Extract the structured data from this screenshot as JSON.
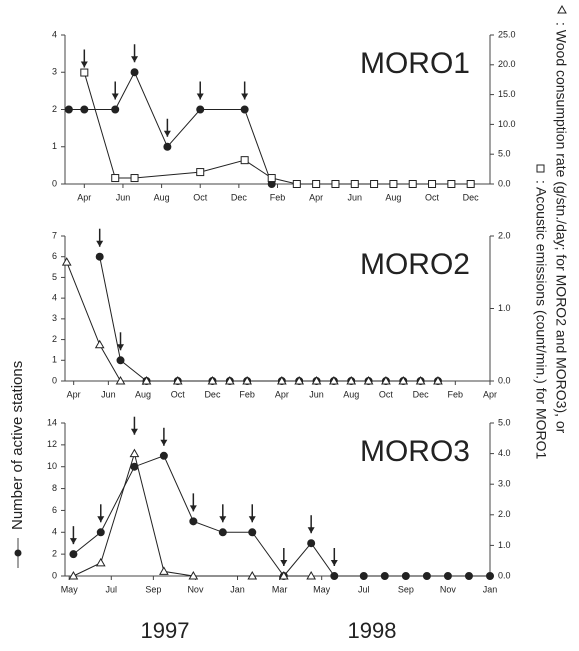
{
  "chart_data": [
    {
      "type": "line",
      "title": "MORO1",
      "xlim": [
        2,
        24
      ],
      "xticks": [
        {
          "value": 3,
          "label": "Apr"
        },
        {
          "value": 5,
          "label": "Jun"
        },
        {
          "value": 7,
          "label": "Aug"
        },
        {
          "value": 9,
          "label": "Oct"
        },
        {
          "value": 11,
          "label": "Dec"
        },
        {
          "value": 13,
          "label": "Feb"
        },
        {
          "value": 15,
          "label": "Apr"
        },
        {
          "value": 17,
          "label": "Jun"
        },
        {
          "value": 19,
          "label": "Aug"
        },
        {
          "value": 21,
          "label": "Oct"
        },
        {
          "value": 23,
          "label": "Dec"
        }
      ],
      "ylim": [
        0,
        4
      ],
      "yticks": [
        0,
        1,
        2,
        3,
        4
      ],
      "y2lim": [
        0,
        25
      ],
      "y2ticks": [
        {
          "value": 0,
          "label": "0.0"
        },
        {
          "value": 5,
          "label": "5.0"
        },
        {
          "value": 10,
          "label": "10.0"
        },
        {
          "value": 15,
          "label": "15.0"
        },
        {
          "value": 20,
          "label": "20.0"
        },
        {
          "value": 25,
          "label": "25.0"
        }
      ],
      "series": [
        {
          "name": "Number of active stations",
          "color": "#222222",
          "marker": "circle",
          "x": [
            2.2,
            3.0,
            4.6,
            5.6,
            7.3,
            9.0,
            11.3,
            12.7
          ],
          "values": [
            2,
            2,
            2,
            3,
            1,
            2,
            2,
            0
          ]
        },
        {
          "name": ": Acoustic emissions (count/min.) for MORO1",
          "color": "#222222",
          "marker": "square",
          "axis": "y2",
          "x": [
            3.0,
            4.6,
            5.6,
            9.0,
            11.3,
            12.7,
            14,
            15,
            16,
            17,
            18,
            19,
            20,
            21,
            22,
            23
          ],
          "values": [
            18.7,
            1.0,
            1.0,
            2.0,
            4.0,
            1.0,
            0,
            0,
            0,
            0,
            0,
            0,
            0,
            0,
            0,
            0
          ]
        }
      ]
    },
    {
      "type": "line",
      "title": "MORO2",
      "xlim": [
        2.5,
        27
      ],
      "xticks": [
        {
          "value": 3,
          "label": "Apr"
        },
        {
          "value": 5,
          "label": "Jun"
        },
        {
          "value": 7,
          "label": "Aug"
        },
        {
          "value": 9,
          "label": "Oct"
        },
        {
          "value": 11,
          "label": "Dec"
        },
        {
          "value": 13,
          "label": "Feb"
        },
        {
          "value": 15,
          "label": "Apr"
        },
        {
          "value": 17,
          "label": "Jun"
        },
        {
          "value": 19,
          "label": "Aug"
        },
        {
          "value": 21,
          "label": "Oct"
        },
        {
          "value": 23,
          "label": "Dec"
        },
        {
          "value": 25,
          "label": "Feb"
        },
        {
          "value": 27,
          "label": "Apr"
        }
      ],
      "ylim": [
        0,
        7
      ],
      "yticks": [
        0,
        1,
        2,
        3,
        4,
        5,
        6,
        7
      ],
      "y2lim": [
        0,
        2
      ],
      "y2ticks": [
        {
          "value": 0,
          "label": "0.0"
        },
        {
          "value": 1,
          "label": "1.0"
        },
        {
          "value": 2,
          "label": "2.0"
        }
      ],
      "series": [
        {
          "name": "Number of active stations",
          "color": "#222222",
          "marker": "circle",
          "x": [
            4.5,
            5.7,
            7.2,
            9,
            11,
            12,
            13,
            15,
            16,
            17,
            18,
            19,
            20,
            21,
            22,
            23,
            24
          ],
          "values": [
            6,
            1,
            0,
            0,
            0,
            0,
            0,
            0,
            0,
            0,
            0,
            0,
            0,
            0,
            0,
            0,
            0
          ]
        },
        {
          "name": ": Wood consumption rate (g/stn./day; for MORO2 and MORO3), or",
          "color": "#222222",
          "marker": "triangle",
          "axis": "y2",
          "x": [
            2.6,
            4.5,
            5.7,
            7.2,
            9,
            11,
            12,
            13,
            15,
            16,
            17,
            18,
            19,
            20,
            21,
            22,
            23,
            24
          ],
          "values": [
            1.64,
            0.5,
            0,
            0,
            0,
            0,
            0,
            0,
            0,
            0,
            0,
            0,
            0,
            0,
            0,
            0,
            0,
            0
          ]
        }
      ]
    },
    {
      "type": "line",
      "title": "MORO3",
      "xlim": [
        3.8,
        24
      ],
      "xticks": [
        {
          "value": 4,
          "label": "May"
        },
        {
          "value": 6,
          "label": "Jul"
        },
        {
          "value": 8,
          "label": "Sep"
        },
        {
          "value": 10,
          "label": "Nov"
        },
        {
          "value": 12,
          "label": "Jan"
        },
        {
          "value": 14,
          "label": "Mar"
        },
        {
          "value": 16,
          "label": "May"
        },
        {
          "value": 18,
          "label": "Jul"
        },
        {
          "value": 20,
          "label": "Sep"
        },
        {
          "value": 22,
          "label": "Nov"
        },
        {
          "value": 24,
          "label": "Jan"
        }
      ],
      "ylim": [
        0,
        14
      ],
      "yticks": [
        0,
        2,
        4,
        6,
        8,
        10,
        12,
        14
      ],
      "y2lim": [
        0,
        5
      ],
      "y2ticks": [
        {
          "value": 0,
          "label": "0.0"
        },
        {
          "value": 1,
          "label": "1.0"
        },
        {
          "value": 2,
          "label": "2.0"
        },
        {
          "value": 3,
          "label": "3.0"
        },
        {
          "value": 4,
          "label": "4.0"
        },
        {
          "value": 5,
          "label": "5.0"
        }
      ],
      "series": [
        {
          "name": "Number of active stations",
          "color": "#222222",
          "marker": "circle",
          "x": [
            4.2,
            5.5,
            7.1,
            8.5,
            9.9,
            11.3,
            12.7,
            14.2,
            15.5,
            16.6,
            18,
            19,
            20,
            21,
            22,
            23,
            24
          ],
          "values": [
            2,
            4,
            10,
            11,
            5,
            4,
            4,
            0,
            3,
            0,
            0,
            0,
            0,
            0,
            0,
            0,
            0
          ]
        },
        {
          "name": ": Wood consumption rate (g/stn./day; for MORO2 and MORO3), or",
          "color": "#222222",
          "marker": "triangle",
          "axis": "y2",
          "x": [
            4.2,
            5.5,
            7.1,
            8.5,
            9.9,
            12.7,
            14.2,
            15.5
          ],
          "values": [
            0,
            0.43,
            4.0,
            0.15,
            0,
            0,
            0,
            0
          ]
        }
      ]
    }
  ],
  "years": [
    "1997",
    "1998"
  ]
}
